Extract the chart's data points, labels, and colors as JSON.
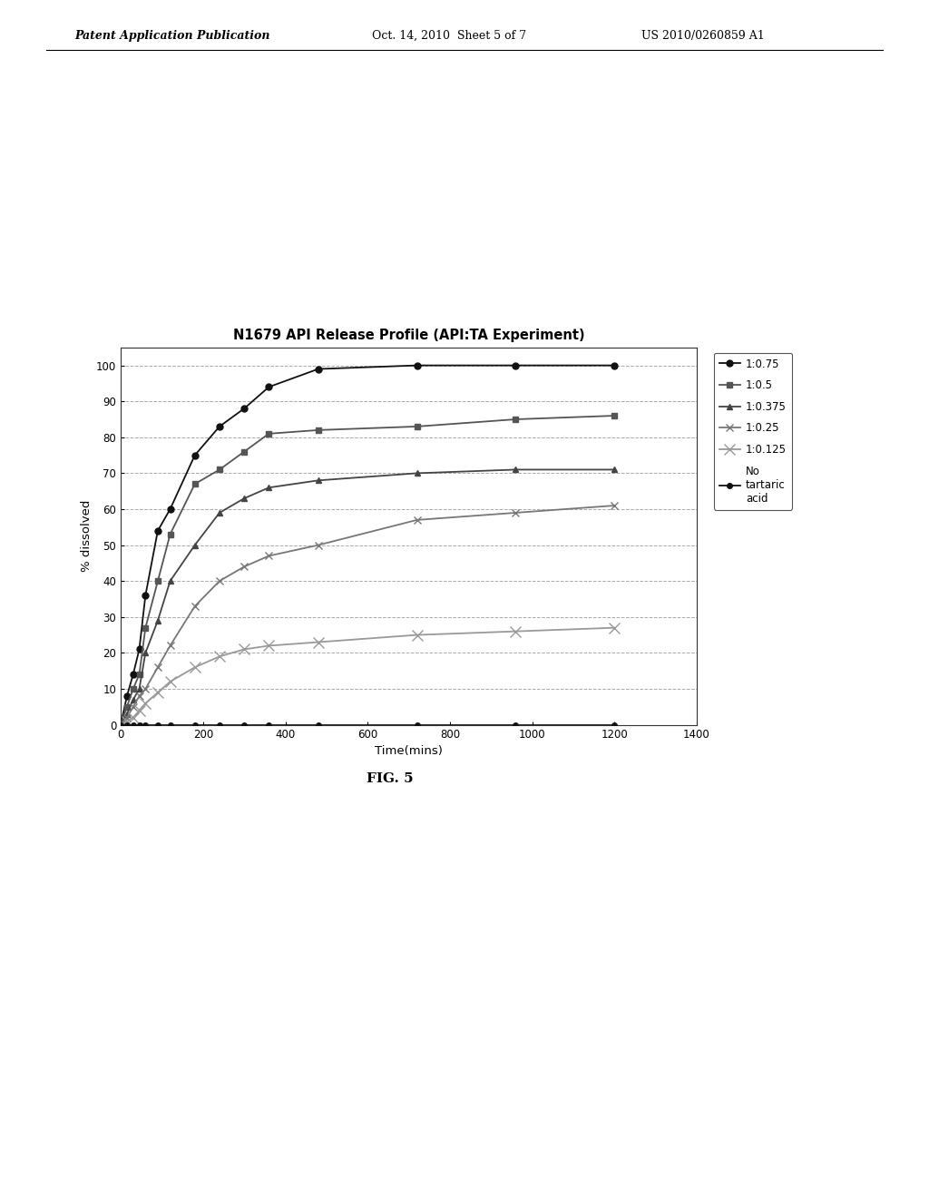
{
  "title": "N1679 API Release Profile (API:TA Experiment)",
  "xlabel": "Time(mins)",
  "ylabel": "% dissolved",
  "xlim": [
    0,
    1400
  ],
  "ylim": [
    0,
    105
  ],
  "xticks": [
    0,
    200,
    400,
    600,
    800,
    1000,
    1200,
    1400
  ],
  "yticks": [
    0,
    10,
    20,
    30,
    40,
    50,
    60,
    70,
    80,
    90,
    100
  ],
  "series": [
    {
      "label": "1:0.75",
      "color": "#111111",
      "linewidth": 1.3,
      "marker": "o",
      "markersize": 5,
      "markerfacecolor": "#111111",
      "linestyle": "-",
      "x": [
        0,
        15,
        30,
        45,
        60,
        90,
        120,
        180,
        240,
        300,
        360,
        480,
        720,
        960,
        1200
      ],
      "y": [
        0,
        8,
        14,
        21,
        36,
        54,
        60,
        75,
        83,
        88,
        94,
        99,
        100,
        100,
        100
      ]
    },
    {
      "label": "1:0.5",
      "color": "#555555",
      "linewidth": 1.3,
      "marker": "s",
      "markersize": 5,
      "markerfacecolor": "#555555",
      "linestyle": "-",
      "x": [
        0,
        15,
        30,
        45,
        60,
        90,
        120,
        180,
        240,
        300,
        360,
        480,
        720,
        960,
        1200
      ],
      "y": [
        0,
        5,
        10,
        14,
        27,
        40,
        53,
        67,
        71,
        76,
        81,
        82,
        83,
        85,
        86
      ]
    },
    {
      "label": "1:0.375",
      "color": "#444444",
      "linewidth": 1.3,
      "marker": "^",
      "markersize": 5,
      "markerfacecolor": "#444444",
      "linestyle": "-",
      "x": [
        0,
        15,
        30,
        45,
        60,
        90,
        120,
        180,
        240,
        300,
        360,
        480,
        720,
        960,
        1200
      ],
      "y": [
        0,
        3,
        7,
        10,
        20,
        29,
        40,
        50,
        59,
        63,
        66,
        68,
        70,
        71,
        71
      ]
    },
    {
      "label": "1:0.25",
      "color": "#777777",
      "linewidth": 1.3,
      "marker": "x",
      "markersize": 6,
      "markerfacecolor": "#777777",
      "linestyle": "-",
      "x": [
        0,
        15,
        30,
        45,
        60,
        90,
        120,
        180,
        240,
        300,
        360,
        480,
        720,
        960,
        1200
      ],
      "y": [
        0,
        2,
        5,
        8,
        10,
        16,
        22,
        33,
        40,
        44,
        47,
        50,
        57,
        59,
        61
      ]
    },
    {
      "label": "1:0.125",
      "color": "#999999",
      "linewidth": 1.3,
      "marker": "x",
      "markersize": 8,
      "markerfacecolor": "#999999",
      "linestyle": "-",
      "x": [
        0,
        15,
        30,
        45,
        60,
        90,
        120,
        180,
        240,
        300,
        360,
        480,
        720,
        960,
        1200
      ],
      "y": [
        0,
        1,
        2,
        4,
        6,
        9,
        12,
        16,
        19,
        21,
        22,
        23,
        25,
        26,
        27
      ]
    },
    {
      "label": "No\ntartaric\nacid",
      "color": "#111111",
      "linewidth": 1.3,
      "marker": "o",
      "markersize": 4,
      "markerfacecolor": "#111111",
      "linestyle": "-",
      "x": [
        0,
        15,
        30,
        45,
        60,
        90,
        120,
        180,
        240,
        300,
        360,
        480,
        720,
        960,
        1200
      ],
      "y": [
        0,
        0,
        0,
        0,
        0,
        0,
        0,
        0,
        0,
        0,
        0,
        0,
        0,
        0,
        0
      ]
    }
  ],
  "header_left": "Patent Application Publication",
  "header_center": "Oct. 14, 2010  Sheet 5 of 7",
  "header_right": "US 2010/0260859 A1",
  "figure_label": "FIG. 5",
  "background_color": "#ffffff",
  "plot_bg_color": "#ffffff",
  "grid_color": "#aaaaaa",
  "grid_linestyle": "--",
  "grid_linewidth": 0.7
}
